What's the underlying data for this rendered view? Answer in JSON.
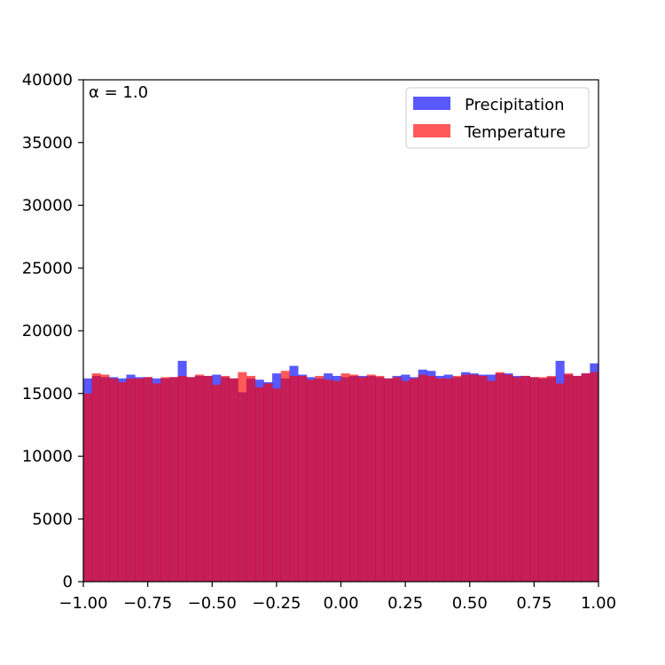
{
  "chart_data": {
    "type": "histogram",
    "annotation": "α = 1.0",
    "xlim": [
      -1.0,
      1.0
    ],
    "ylim": [
      0,
      40000
    ],
    "xticks": [
      -1.0,
      -0.75,
      -0.5,
      -0.25,
      0.0,
      0.25,
      0.5,
      0.75,
      1.0
    ],
    "xtick_labels": [
      "−1.00",
      "−0.75",
      "−0.50",
      "−0.25",
      "0.00",
      "0.25",
      "0.50",
      "0.75",
      "1.00"
    ],
    "yticks": [
      0,
      5000,
      10000,
      15000,
      20000,
      25000,
      30000,
      35000,
      40000
    ],
    "ytick_labels": [
      "0",
      "5000",
      "10000",
      "15000",
      "20000",
      "25000",
      "30000",
      "35000",
      "40000"
    ],
    "legend_placement": "top-right",
    "bin_count": 60,
    "series": [
      {
        "name": "Precipitation",
        "color": "#0000ff",
        "alpha": 0.65,
        "values": [
          16200,
          16400,
          16300,
          16300,
          16200,
          16500,
          16300,
          16300,
          16200,
          16200,
          16300,
          17600,
          16300,
          16400,
          16400,
          16500,
          16300,
          16200,
          15100,
          16200,
          16100,
          15900,
          16600,
          16200,
          17200,
          16500,
          16300,
          16200,
          16600,
          16400,
          16300,
          16400,
          16400,
          16400,
          16300,
          16200,
          16400,
          16500,
          16300,
          16900,
          16800,
          16400,
          16500,
          16300,
          16700,
          16600,
          16500,
          16500,
          16600,
          16600,
          16400,
          16400,
          16300,
          16200,
          16300,
          17600,
          16500,
          16400,
          16600,
          17400
        ]
      },
      {
        "name": "Temperature",
        "color": "#ff0000",
        "alpha": 0.65,
        "values": [
          15000,
          16600,
          16500,
          16200,
          15900,
          16200,
          16200,
          16300,
          15800,
          16300,
          16300,
          16400,
          16300,
          16500,
          16400,
          15700,
          16400,
          16200,
          16700,
          16400,
          15500,
          15800,
          15400,
          16800,
          16400,
          16400,
          16100,
          16400,
          16100,
          16000,
          16600,
          16500,
          16300,
          16500,
          16400,
          16200,
          16300,
          16000,
          16200,
          16500,
          16400,
          16200,
          16200,
          16400,
          16500,
          16500,
          16400,
          16000,
          16700,
          16500,
          16300,
          16400,
          16300,
          16300,
          16400,
          15800,
          16600,
          16400,
          16600,
          16700
        ]
      }
    ]
  }
}
